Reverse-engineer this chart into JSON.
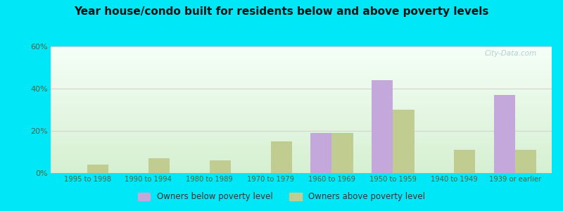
{
  "title": "Year house/condo built for residents below and above poverty levels",
  "categories": [
    "1995 to 1998",
    "1990 to 1994",
    "1980 to 1989",
    "1970 to 1979",
    "1960 to 1969",
    "1950 to 1959",
    "1940 to 1949",
    "1939 or earlier"
  ],
  "below_poverty": [
    0,
    0,
    0,
    0,
    19,
    44,
    0,
    37
  ],
  "above_poverty": [
    4,
    7,
    6,
    15,
    19,
    30,
    11,
    11
  ],
  "below_color": "#c4a8dc",
  "above_color": "#c0cc90",
  "ylim": [
    0,
    60
  ],
  "yticks": [
    0,
    20,
    40,
    60
  ],
  "ytick_labels": [
    "0%",
    "20%",
    "40%",
    "60%"
  ],
  "legend_below": "Owners below poverty level",
  "legend_above": "Owners above poverty level",
  "fig_bg": "#00e8f8",
  "plot_bg_top": "#f4fdf4",
  "plot_bg_bottom": "#dff0d8",
  "watermark": "City-Data.com"
}
